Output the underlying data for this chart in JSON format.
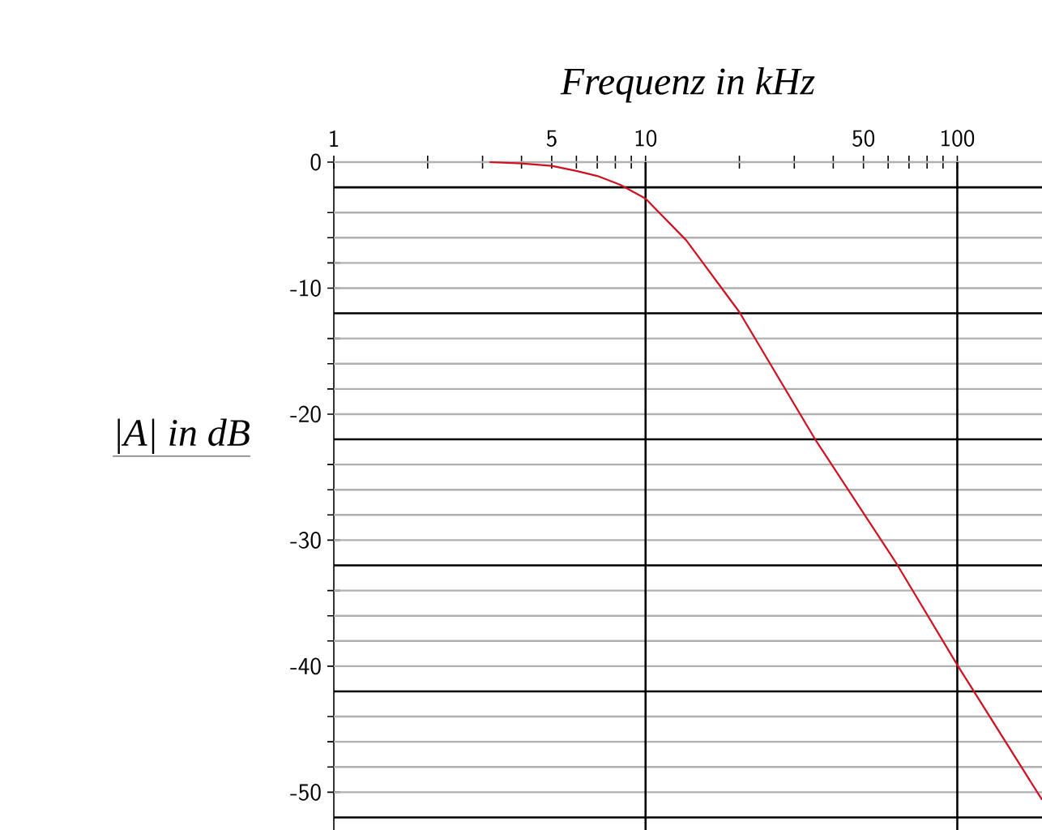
{
  "chart_data": {
    "type": "line",
    "xlabel": "Frequenz in kHz",
    "ylabel": "|A| in dB",
    "log": "x",
    "xlim": [
      1,
      187
    ],
    "ylim": [
      -53,
      0
    ],
    "xticks": [
      1,
      {
        "value": 2,
        "label": null
      },
      {
        "value": 3,
        "label": null
      },
      {
        "value": 4,
        "label": null
      },
      5,
      {
        "value": 6,
        "label": null
      },
      {
        "value": 7,
        "label": null
      },
      {
        "value": 8,
        "label": null
      },
      {
        "value": 9,
        "label": null
      },
      10,
      {
        "value": 20,
        "label": null
      },
      {
        "value": 30,
        "label": null
      },
      {
        "value": 40,
        "label": null
      },
      50,
      {
        "value": 60,
        "label": null
      },
      {
        "value": 70,
        "label": null
      },
      {
        "value": 80,
        "label": null
      },
      {
        "value": 90,
        "label": null
      },
      100
    ],
    "yticks": [
      0,
      {
        "value": -4,
        "label": null
      },
      {
        "value": -6,
        "label": null
      },
      {
        "value": -8,
        "label": null
      },
      -10,
      {
        "value": -14,
        "label": null
      },
      {
        "value": -16,
        "label": null
      },
      {
        "value": -18,
        "label": null
      },
      -20,
      {
        "value": -24,
        "label": null
      },
      {
        "value": -26,
        "label": null
      },
      {
        "value": -28,
        "label": null
      },
      -30,
      {
        "value": -34,
        "label": null
      },
      {
        "value": -36,
        "label": null
      },
      {
        "value": -38,
        "label": null
      },
      -40,
      {
        "value": -44,
        "label": null
      },
      {
        "value": -46,
        "label": null
      },
      {
        "value": -48,
        "label": null
      },
      -50
    ],
    "grid": "y",
    "ref_lines": [
      {
        "axis": "y",
        "value": -2,
        "color": "#000000"
      },
      {
        "axis": "y",
        "value": -12,
        "color": "#000000"
      },
      {
        "axis": "y",
        "value": -22,
        "color": "#000000"
      },
      {
        "axis": "y",
        "value": -32,
        "color": "#000000"
      },
      {
        "axis": "y",
        "value": -42,
        "color": "#000000"
      },
      {
        "axis": "y",
        "value": -52,
        "color": "#000000"
      },
      {
        "axis": "x",
        "value": 10,
        "color": "#000000"
      },
      {
        "axis": "x",
        "value": 100,
        "color": "#000000"
      }
    ],
    "series": [
      {
        "color": "#d01020",
        "x": [
          3.16,
          4,
          5,
          6,
          7,
          8.3,
          10,
          13.5,
          20,
          35,
          64,
          100,
          187
        ],
        "values": [
          0,
          -0.1,
          -0.3,
          -0.7,
          -1.1,
          -1.8,
          -2.9,
          -6.2,
          -11.9,
          -22,
          -31.9,
          -39.9,
          -50.6
        ]
      }
    ]
  }
}
